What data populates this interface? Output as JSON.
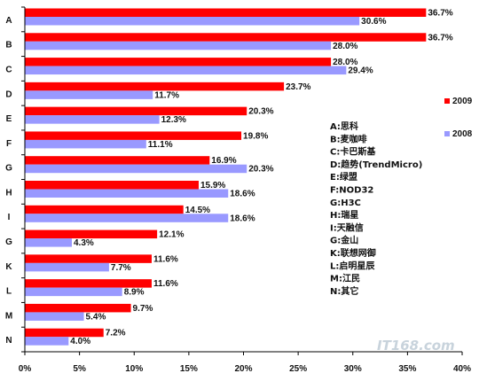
{
  "chart_data": {
    "type": "bar",
    "orientation": "horizontal",
    "categories": [
      "A",
      "B",
      "C",
      "D",
      "E",
      "F",
      "G",
      "H",
      "I",
      "G",
      "K",
      "L",
      "M",
      "N"
    ],
    "series": [
      {
        "name": "2009",
        "color": "#ff0000",
        "values": [
          36.7,
          36.7,
          28.0,
          23.7,
          20.3,
          19.8,
          16.9,
          15.9,
          14.5,
          12.1,
          11.6,
          11.6,
          9.7,
          7.2
        ]
      },
      {
        "name": "2008",
        "color": "#9999ff",
        "values": [
          30.6,
          28.0,
          29.4,
          11.7,
          12.3,
          11.1,
          20.3,
          18.6,
          18.6,
          4.3,
          7.7,
          8.9,
          5.4,
          4.0
        ]
      }
    ],
    "data_labels": [
      [
        "36.7%",
        "36.7%",
        "28.0%",
        "23.7%",
        "20.3%",
        "19.8%",
        "16.9%",
        "15.9%",
        "14.5%",
        "12.1%",
        "11.6%",
        "11.6%",
        "9.7%",
        "7.2%"
      ],
      [
        "30.6%",
        "28.0%",
        "29.4%",
        "11.7%",
        "12.3%",
        "11.1%",
        "20.3%",
        "18.6%",
        "18.6%",
        "4.3%",
        "7.7%",
        "8.9%",
        "5.4%",
        "4.0%"
      ]
    ],
    "x_ticks": [
      "0%",
      "5%",
      "10%",
      "15%",
      "20%",
      "25%",
      "30%",
      "35%",
      "40%"
    ],
    "xlim": [
      0,
      40
    ],
    "grid": false,
    "legend": {
      "placement": "right",
      "entries": [
        "2009",
        "2008"
      ]
    },
    "key": [
      "A:思科",
      "B:麦咖啡",
      "C:卡巴斯基",
      "D:趋势(TrendMicro)",
      "E:绿盟",
      "F:NOD32",
      "G:H3C",
      "H:瑞星",
      "I:天融信",
      "G:金山",
      "K:联想网御",
      "L:启明星辰",
      "M:江民",
      "N:其它"
    ]
  },
  "watermark": "IT168.com"
}
